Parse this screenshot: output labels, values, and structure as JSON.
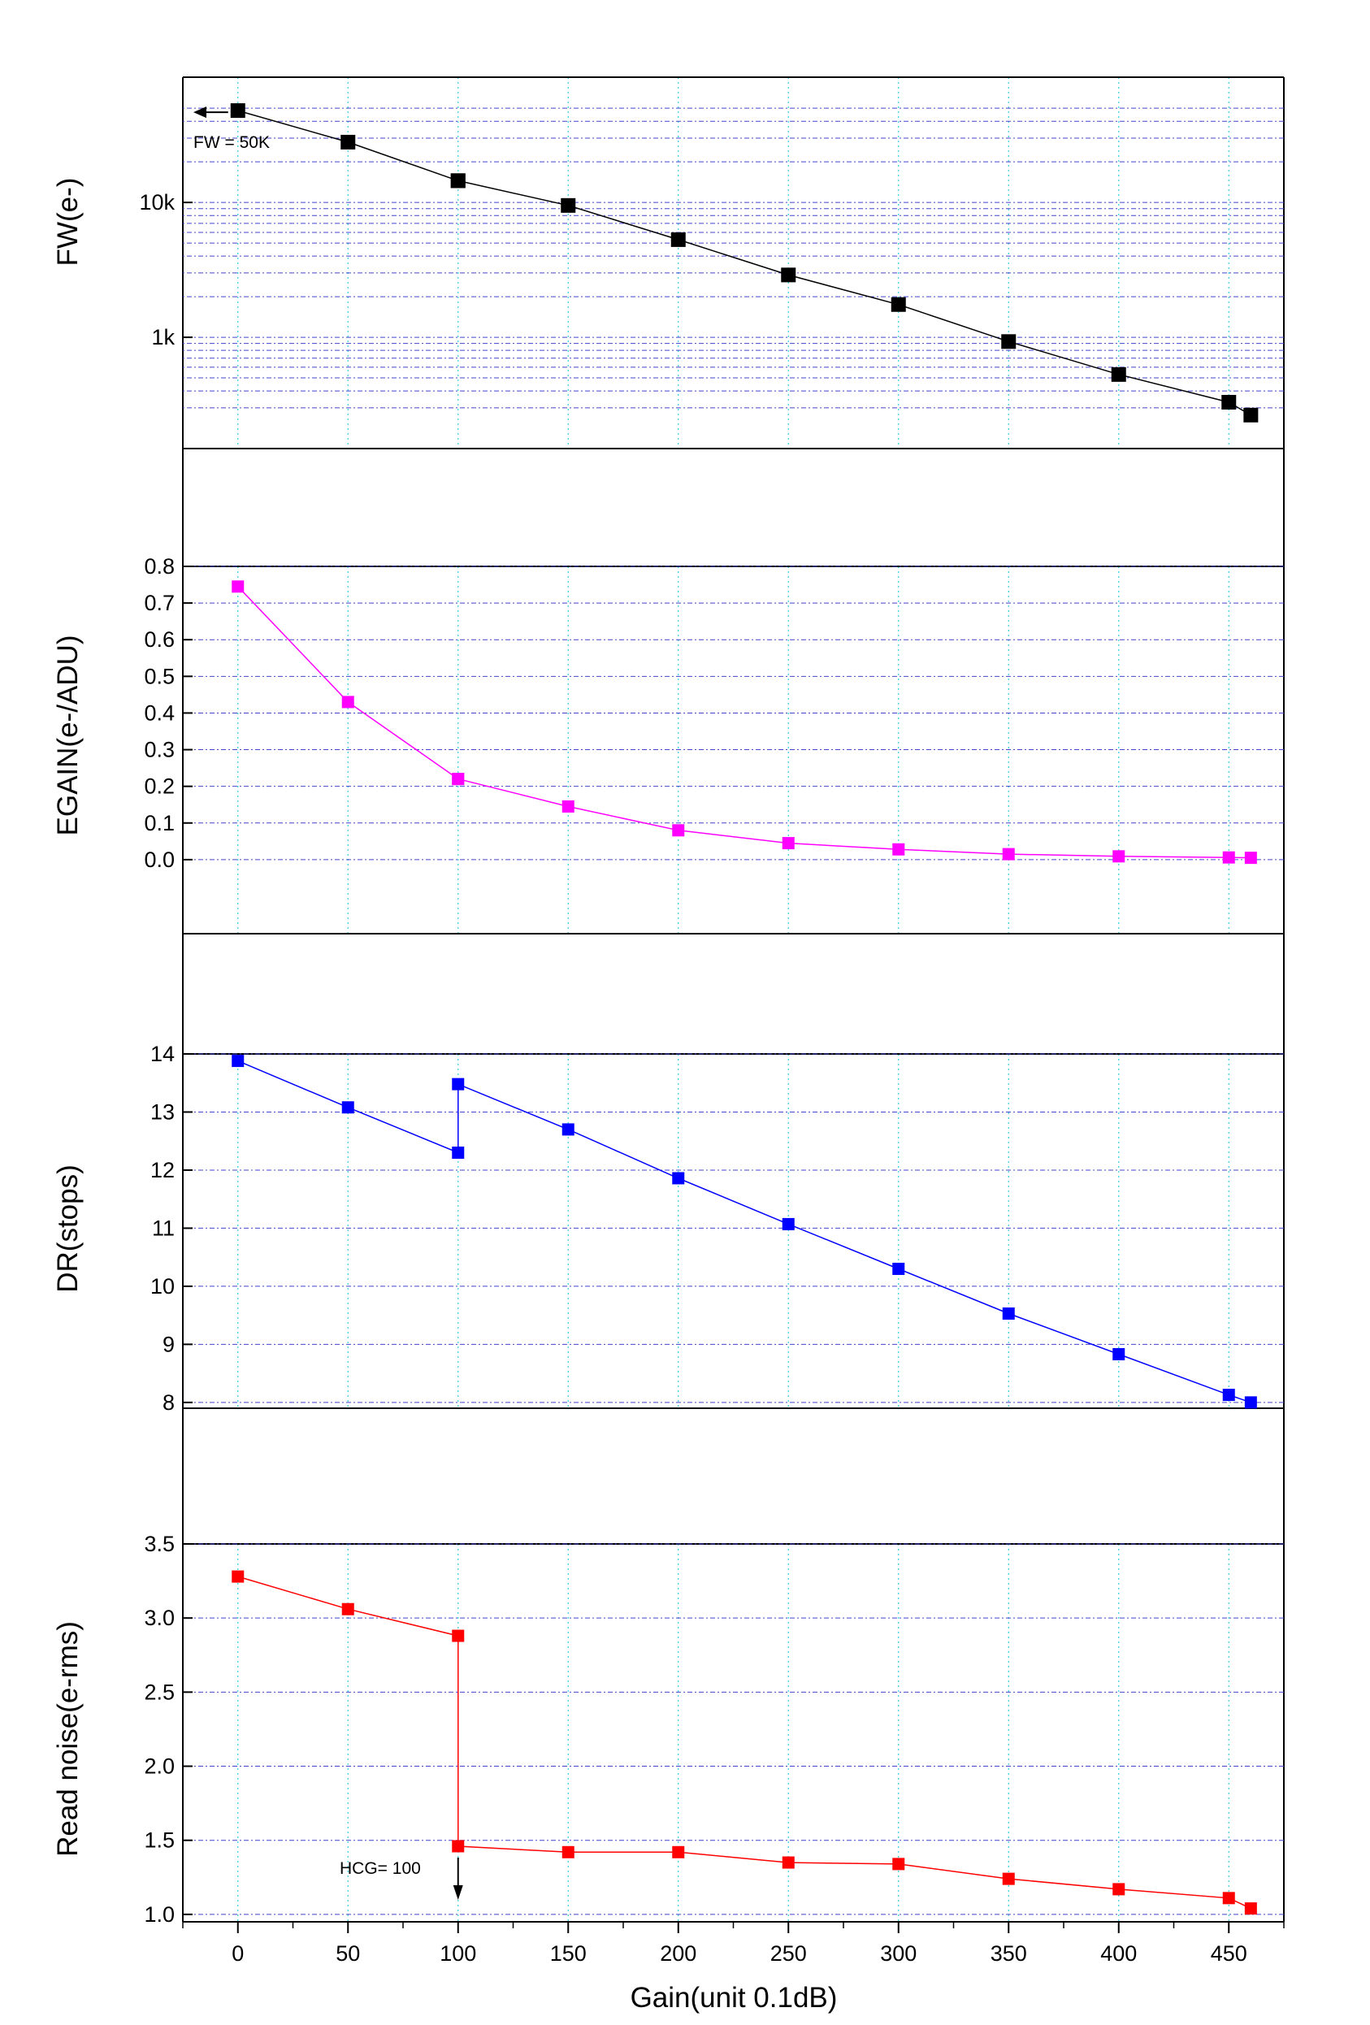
{
  "chart_data": {
    "type": "line",
    "x": [
      0,
      50,
      100,
      100,
      150,
      200,
      250,
      300,
      350,
      400,
      450,
      460
    ],
    "xlabel": "Gain(unit 0.1dB)",
    "xlim": [
      -25,
      475
    ],
    "xticks": [
      0,
      50,
      100,
      150,
      200,
      250,
      300,
      350,
      400,
      450
    ],
    "xtick_labels": [
      "0",
      "50",
      "100",
      "150",
      "200",
      "250",
      "300",
      "350",
      "400",
      "450"
    ],
    "x_gridlines": true,
    "panels": [
      {
        "key": "fw",
        "ylabel": "FW(e-)",
        "scale": "log",
        "ylim": [
          250,
          60000
        ],
        "yticks": [
          1000,
          10000
        ],
        "ytick_labels": [
          "1k",
          "10k"
        ],
        "y_gridlines": [
          300,
          400,
          500,
          600,
          700,
          800,
          900,
          1000,
          2000,
          3000,
          4000,
          5000,
          6000,
          7000,
          8000,
          9000,
          10000,
          20000,
          30000,
          40000,
          50000
        ],
        "color": "#000000",
        "values": [
          48000,
          28000,
          14500,
          14500,
          9500,
          5300,
          2900,
          1750,
          930,
          530,
          330,
          265
        ],
        "annotations": [
          {
            "text": "FW = 50K",
            "arrow": "left"
          }
        ]
      },
      {
        "key": "egain",
        "ylabel": "EGAIN(e-/ADU)",
        "scale": "linear",
        "ylim": [
          -0.1,
          0.8
        ],
        "yticks": [
          0.0,
          0.1,
          0.2,
          0.3,
          0.4,
          0.5,
          0.6,
          0.7,
          0.8
        ],
        "ytick_labels": [
          "0.0",
          "0.1",
          "0.2",
          "0.3",
          "0.4",
          "0.5",
          "0.6",
          "0.7",
          "0.8"
        ],
        "color": "#ff00ff",
        "values": [
          0.745,
          0.43,
          0.22,
          0.22,
          0.145,
          0.08,
          0.045,
          0.028,
          0.015,
          0.009,
          0.006,
          0.005
        ]
      },
      {
        "key": "dr",
        "ylabel": "DR(stops)",
        "scale": "linear",
        "ylim": [
          7.9,
          14
        ],
        "yticks": [
          8,
          9,
          10,
          11,
          12,
          13,
          14
        ],
        "ytick_labels": [
          "8",
          "9",
          "10",
          "11",
          "12",
          "13",
          "14"
        ],
        "color": "#0000ff",
        "values": [
          13.88,
          13.08,
          12.3,
          13.48,
          12.7,
          11.86,
          11.07,
          10.3,
          9.53,
          8.83,
          8.13,
          8.0
        ]
      },
      {
        "key": "rn",
        "ylabel": "Read noise(e-rms)",
        "scale": "linear",
        "ylim": [
          0.95,
          3.5
        ],
        "yticks": [
          1.0,
          1.5,
          2.0,
          2.5,
          3.0,
          3.5
        ],
        "ytick_labels": [
          "1.0",
          "1.5",
          "2.0",
          "2.5",
          "3.0",
          "3.5"
        ],
        "color": "#ff0000",
        "values": [
          3.28,
          3.06,
          2.88,
          1.46,
          1.42,
          1.42,
          1.35,
          1.34,
          1.24,
          1.17,
          1.11,
          1.04
        ],
        "annotations": [
          {
            "text": "HCG= 100",
            "arrow": "down"
          }
        ]
      }
    ]
  }
}
